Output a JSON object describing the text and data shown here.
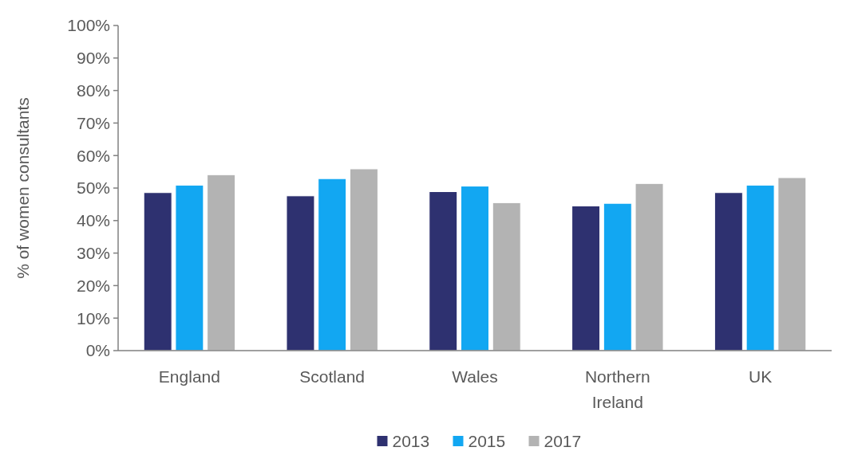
{
  "chart_data": {
    "type": "bar",
    "ylabel": "% of women consultants",
    "categories": [
      "England",
      "Scotland",
      "Wales",
      "Northern Ireland",
      "UK"
    ],
    "series": [
      {
        "name": "2013",
        "color": "#2e3170",
        "values": [
          48.6,
          47.6,
          48.9,
          44.5,
          48.6
        ]
      },
      {
        "name": "2015",
        "color": "#12a7f2",
        "values": [
          50.9,
          52.9,
          50.6,
          45.3,
          50.9
        ]
      },
      {
        "name": "2017",
        "color": "#b3b3b3",
        "values": [
          54.1,
          55.9,
          45.5,
          51.4,
          53.2
        ]
      }
    ],
    "ylim": [
      0,
      100
    ],
    "yticks": [
      {
        "value": 0,
        "label": "0%"
      },
      {
        "value": 10,
        "label": "10%"
      },
      {
        "value": 20,
        "label": "20%"
      },
      {
        "value": 30,
        "label": "30%"
      },
      {
        "value": 40,
        "label": "40%"
      },
      {
        "value": 50,
        "label": "50%"
      },
      {
        "value": 60,
        "label": "60%"
      },
      {
        "value": 70,
        "label": "70%"
      },
      {
        "value": 80,
        "label": "80%"
      },
      {
        "value": 90,
        "label": "90%"
      },
      {
        "value": 100,
        "label": "100%"
      }
    ],
    "grid": false,
    "legend": "bottom"
  }
}
